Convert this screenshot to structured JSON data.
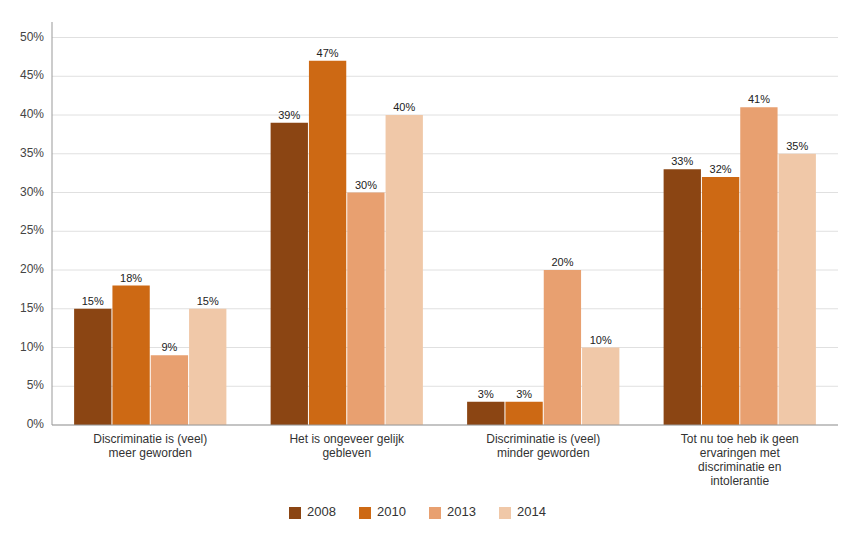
{
  "chart_data": {
    "type": "bar",
    "categories": [
      "Discriminatie is (veel)\nmeer geworden",
      "Het is ongeveer gelijk\ngebleven",
      "Discriminatie is (veel)\nminder geworden",
      "Tot nu toe heb ik geen\nervaringen met\ndiscriminatie en\nintolerantie"
    ],
    "series": [
      {
        "name": "2008",
        "color": "#8B4513",
        "values": [
          15,
          39,
          3,
          33
        ],
        "value_labels": [
          "15%",
          "39%",
          "3%",
          "33%"
        ]
      },
      {
        "name": "2010",
        "color": "#CD6914",
        "values": [
          18,
          47,
          3,
          32
        ],
        "value_labels": [
          "18%",
          "47%",
          "3%",
          "32%"
        ]
      },
      {
        "name": "2013",
        "color": "#E8A070",
        "values": [
          9,
          30,
          20,
          41
        ],
        "value_labels": [
          "9%",
          "30%",
          "20%",
          "41%"
        ]
      },
      {
        "name": "2014",
        "color": "#F0C8A8",
        "values": [
          15,
          40,
          10,
          35
        ],
        "value_labels": [
          "15%",
          "40%",
          "10%",
          "35%"
        ]
      }
    ],
    "ylim": [
      0,
      52
    ],
    "yticks": [
      {
        "value": 0,
        "label": "0%"
      },
      {
        "value": 5,
        "label": "5%"
      },
      {
        "value": 10,
        "label": "10%"
      },
      {
        "value": 15,
        "label": "15%"
      },
      {
        "value": 20,
        "label": "20%"
      },
      {
        "value": 25,
        "label": "25%"
      },
      {
        "value": 30,
        "label": "30%"
      },
      {
        "value": 35,
        "label": "35%"
      },
      {
        "value": 40,
        "label": "40%"
      },
      {
        "value": 45,
        "label": "45%"
      },
      {
        "value": 50,
        "label": "50%"
      }
    ],
    "grid": true,
    "data_labels": true,
    "legend": "bottom"
  }
}
